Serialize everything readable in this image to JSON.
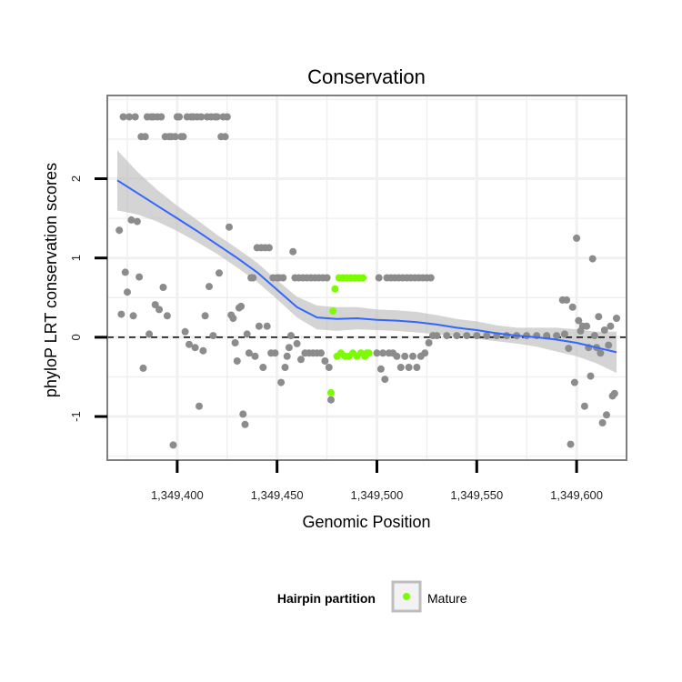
{
  "chart_data": {
    "type": "scatter",
    "title": "Conservation",
    "xlabel": "Genomic Position",
    "ylabel": "phyloP LRT conservation scores",
    "xlim": [
      1349365,
      1349625
    ],
    "ylim": [
      -1.55,
      3.05
    ],
    "x_ticks": [
      1349400,
      1349450,
      1349500,
      1349550,
      1349600
    ],
    "x_tick_labels": [
      "1,349,400",
      "1,349,450",
      "1,349,500",
      "1,349,550",
      "1,349,600"
    ],
    "y_ticks": [
      -1,
      0,
      1,
      2
    ],
    "y_tick_labels": [
      "-1",
      "0",
      "1",
      "2"
    ],
    "grid": true,
    "reference_line": {
      "y": 0,
      "style": "dashed"
    },
    "legend": {
      "title": "Hairpin partition",
      "entries": [
        {
          "label": "Mature",
          "color": "#7cfc00"
        }
      ],
      "position": "bottom"
    },
    "colors": {
      "other": "#8c8c8c",
      "mature": "#7cfc00",
      "smooth": "#3366ff",
      "ribbon": "#bdbdbd",
      "panel": "#ffffff",
      "grid": "#f0f0f0",
      "border": "#7f7f7f"
    },
    "series": [
      {
        "name": "Other",
        "points": [
          [
            1349371,
            1.35
          ],
          [
            1349372,
            0.29
          ],
          [
            1349373,
            2.78
          ],
          [
            1349374,
            0.82
          ],
          [
            1349375,
            0.57
          ],
          [
            1349376,
            2.78
          ],
          [
            1349377,
            1.48
          ],
          [
            1349378,
            0.27
          ],
          [
            1349379,
            2.78
          ],
          [
            1349380,
            1.46
          ],
          [
            1349381,
            0.76
          ],
          [
            1349382,
            2.53
          ],
          [
            1349383,
            -0.39
          ],
          [
            1349384,
            2.53
          ],
          [
            1349385,
            2.78
          ],
          [
            1349386,
            0.04
          ],
          [
            1349387,
            2.78
          ],
          [
            1349388,
            2.78
          ],
          [
            1349389,
            0.41
          ],
          [
            1349390,
            2.78
          ],
          [
            1349391,
            0.35
          ],
          [
            1349392,
            2.78
          ],
          [
            1349393,
            0.63
          ],
          [
            1349394,
            2.53
          ],
          [
            1349395,
            0.27
          ],
          [
            1349396,
            2.53
          ],
          [
            1349397,
            2.53
          ],
          [
            1349398,
            -1.36
          ],
          [
            1349399,
            2.53
          ],
          [
            1349400,
            2.78
          ],
          [
            1349401,
            2.78
          ],
          [
            1349402,
            2.53
          ],
          [
            1349403,
            2.53
          ],
          [
            1349404,
            0.07
          ],
          [
            1349405,
            2.78
          ],
          [
            1349406,
            -0.09
          ],
          [
            1349407,
            2.78
          ],
          [
            1349408,
            2.78
          ],
          [
            1349409,
            -0.13
          ],
          [
            1349410,
            2.78
          ],
          [
            1349411,
            -0.87
          ],
          [
            1349412,
            2.78
          ],
          [
            1349413,
            -0.17
          ],
          [
            1349414,
            0.27
          ],
          [
            1349415,
            2.78
          ],
          [
            1349416,
            0.64
          ],
          [
            1349417,
            2.78
          ],
          [
            1349418,
            0.02
          ],
          [
            1349419,
            2.78
          ],
          [
            1349420,
            2.78
          ],
          [
            1349421,
            0.81
          ],
          [
            1349422,
            2.53
          ],
          [
            1349423,
            2.78
          ],
          [
            1349424,
            2.53
          ],
          [
            1349425,
            2.78
          ],
          [
            1349426,
            1.39
          ],
          [
            1349427,
            0.28
          ],
          [
            1349428,
            0.24
          ],
          [
            1349429,
            -0.07
          ],
          [
            1349430,
            -0.3
          ],
          [
            1349431,
            0.37
          ],
          [
            1349432,
            0.39
          ],
          [
            1349433,
            -0.97
          ],
          [
            1349434,
            -1.1
          ],
          [
            1349435,
            0.04
          ],
          [
            1349436,
            -0.2
          ],
          [
            1349437,
            0.75
          ],
          [
            1349438,
            0.75
          ],
          [
            1349439,
            -0.24
          ],
          [
            1349440,
            1.13
          ],
          [
            1349441,
            0.14
          ],
          [
            1349442,
            1.13
          ],
          [
            1349443,
            -0.38
          ],
          [
            1349444,
            1.13
          ],
          [
            1349445,
            0.14
          ],
          [
            1349446,
            1.13
          ],
          [
            1349447,
            -0.2
          ],
          [
            1349448,
            0.75
          ],
          [
            1349449,
            -0.2
          ],
          [
            1349450,
            0.75
          ],
          [
            1349451,
            0.75
          ],
          [
            1349452,
            -0.57
          ],
          [
            1349453,
            0.75
          ],
          [
            1349454,
            -0.38
          ],
          [
            1349455,
            -0.24
          ],
          [
            1349456,
            -0.13
          ],
          [
            1349457,
            0.02
          ],
          [
            1349458,
            1.08
          ],
          [
            1349459,
            0.75
          ],
          [
            1349460,
            -0.08
          ],
          [
            1349461,
            0.75
          ],
          [
            1349462,
            -0.28
          ],
          [
            1349463,
            0.75
          ],
          [
            1349464,
            -0.2
          ],
          [
            1349465,
            0.75
          ],
          [
            1349466,
            -0.2
          ],
          [
            1349467,
            0.75
          ],
          [
            1349468,
            -0.2
          ],
          [
            1349469,
            0.75
          ],
          [
            1349470,
            -0.2
          ],
          [
            1349471,
            0.75
          ],
          [
            1349472,
            -0.2
          ],
          [
            1349473,
            0.75
          ],
          [
            1349474,
            -0.3
          ],
          [
            1349475,
            0.75
          ],
          [
            1349476,
            -0.38
          ],
          [
            1349477,
            -0.79
          ],
          [
            1349500,
            -0.2
          ],
          [
            1349501,
            0.75
          ],
          [
            1349502,
            -0.4
          ],
          [
            1349503,
            -0.2
          ],
          [
            1349504,
            -0.53
          ],
          [
            1349505,
            0.75
          ],
          [
            1349506,
            -0.2
          ],
          [
            1349507,
            0.75
          ],
          [
            1349508,
            -0.2
          ],
          [
            1349509,
            0.75
          ],
          [
            1349510,
            -0.24
          ],
          [
            1349511,
            0.75
          ],
          [
            1349512,
            -0.38
          ],
          [
            1349513,
            0.75
          ],
          [
            1349514,
            -0.24
          ],
          [
            1349515,
            0.75
          ],
          [
            1349516,
            -0.38
          ],
          [
            1349517,
            0.75
          ],
          [
            1349518,
            -0.24
          ],
          [
            1349519,
            0.75
          ],
          [
            1349520,
            -0.38
          ],
          [
            1349521,
            0.75
          ],
          [
            1349522,
            -0.24
          ],
          [
            1349523,
            0.75
          ],
          [
            1349524,
            -0.2
          ],
          [
            1349525,
            0.75
          ],
          [
            1349526,
            -0.07
          ],
          [
            1349527,
            0.75
          ],
          [
            1349528,
            0.02
          ],
          [
            1349530,
            0.02
          ],
          [
            1349535,
            0.02
          ],
          [
            1349540,
            0.02
          ],
          [
            1349545,
            0.02
          ],
          [
            1349550,
            0.02
          ],
          [
            1349555,
            0.02
          ],
          [
            1349560,
            0.02
          ],
          [
            1349565,
            0.02
          ],
          [
            1349570,
            0.02
          ],
          [
            1349575,
            0.02
          ],
          [
            1349580,
            0.02
          ],
          [
            1349585,
            0.02
          ],
          [
            1349590,
            0.02
          ],
          [
            1349593,
            0.47
          ],
          [
            1349594,
            0.04
          ],
          [
            1349595,
            0.47
          ],
          [
            1349596,
            -0.14
          ],
          [
            1349597,
            -1.35
          ],
          [
            1349598,
            0.38
          ],
          [
            1349599,
            -0.57
          ],
          [
            1349600,
            1.25
          ],
          [
            1349601,
            0.21
          ],
          [
            1349602,
            0.08
          ],
          [
            1349603,
            0.14
          ],
          [
            1349604,
            -0.87
          ],
          [
            1349605,
            0.14
          ],
          [
            1349606,
            -0.13
          ],
          [
            1349607,
            -0.49
          ],
          [
            1349608,
            0.99
          ],
          [
            1349609,
            0.02
          ],
          [
            1349610,
            -0.13
          ],
          [
            1349611,
            0.26
          ],
          [
            1349612,
            -0.2
          ],
          [
            1349613,
            -1.08
          ],
          [
            1349614,
            0.09
          ],
          [
            1349615,
            -0.98
          ],
          [
            1349616,
            -0.1
          ],
          [
            1349617,
            0.14
          ],
          [
            1349618,
            -0.74
          ],
          [
            1349619,
            -0.71
          ],
          [
            1349620,
            0.24
          ]
        ]
      },
      {
        "name": "Mature",
        "points": [
          [
            1349477,
            -0.7
          ],
          [
            1349478,
            0.33
          ],
          [
            1349479,
            0.61
          ],
          [
            1349480,
            -0.24
          ],
          [
            1349481,
            0.75
          ],
          [
            1349482,
            -0.2
          ],
          [
            1349483,
            0.75
          ],
          [
            1349484,
            -0.24
          ],
          [
            1349485,
            0.75
          ],
          [
            1349486,
            -0.24
          ],
          [
            1349487,
            0.75
          ],
          [
            1349488,
            -0.2
          ],
          [
            1349489,
            0.75
          ],
          [
            1349490,
            -0.24
          ],
          [
            1349491,
            0.75
          ],
          [
            1349492,
            -0.2
          ],
          [
            1349493,
            0.75
          ],
          [
            1349494,
            -0.24
          ],
          [
            1349495,
            -0.2
          ],
          [
            1349496,
            -0.2
          ]
        ]
      }
    ],
    "smooth_fit": {
      "method": "loess",
      "x": [
        1349370,
        1349380,
        1349390,
        1349400,
        1349410,
        1349420,
        1349430,
        1349440,
        1349450,
        1349460,
        1349470,
        1349480,
        1349490,
        1349500,
        1349510,
        1349520,
        1349530,
        1349540,
        1349550,
        1349560,
        1349570,
        1349580,
        1349590,
        1349600,
        1349610,
        1349620
      ],
      "y": [
        1.98,
        1.82,
        1.66,
        1.5,
        1.34,
        1.17,
        1.0,
        0.82,
        0.6,
        0.38,
        0.25,
        0.23,
        0.24,
        0.22,
        0.21,
        0.19,
        0.16,
        0.12,
        0.09,
        0.05,
        0.02,
        0.0,
        -0.03,
        -0.07,
        -0.13,
        -0.19
      ],
      "lower": [
        1.6,
        1.55,
        1.46,
        1.34,
        1.2,
        1.05,
        0.88,
        0.7,
        0.48,
        0.25,
        0.1,
        0.08,
        0.1,
        0.09,
        0.08,
        0.06,
        0.04,
        0.01,
        -0.02,
        -0.05,
        -0.08,
        -0.12,
        -0.18,
        -0.24,
        -0.33,
        -0.45
      ],
      "upper": [
        2.36,
        2.09,
        1.86,
        1.66,
        1.48,
        1.29,
        1.12,
        0.94,
        0.72,
        0.51,
        0.4,
        0.38,
        0.38,
        0.35,
        0.34,
        0.32,
        0.28,
        0.23,
        0.2,
        0.15,
        0.12,
        0.12,
        0.12,
        0.1,
        0.07,
        0.07
      ]
    }
  }
}
